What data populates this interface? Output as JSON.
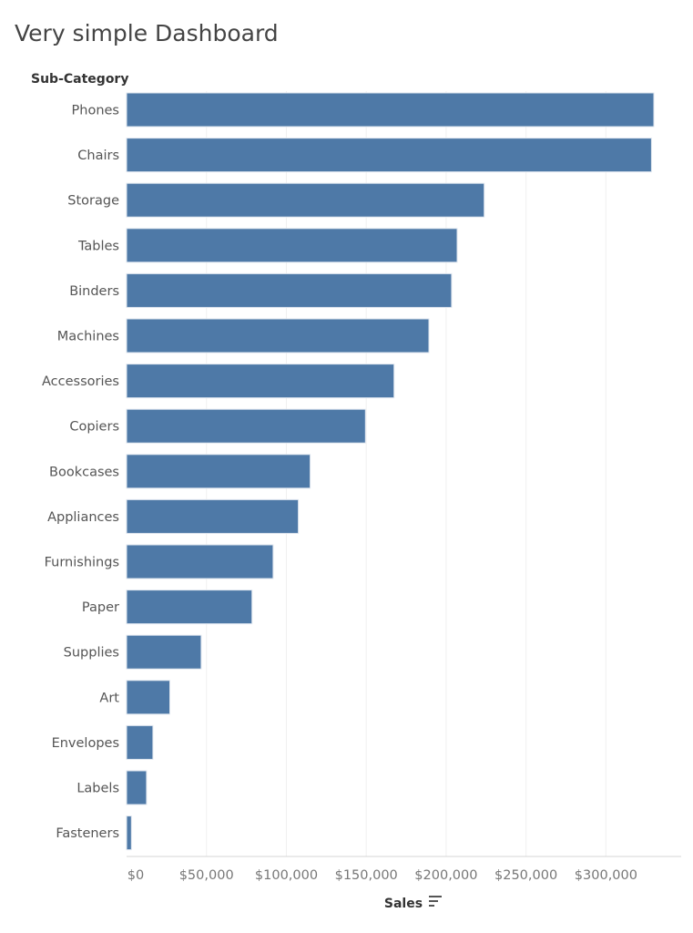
{
  "dashboard": {
    "title": "Very simple Dashboard"
  },
  "chart_data": {
    "type": "bar",
    "orientation": "horizontal",
    "row_header": "Sub-Category",
    "xlabel": "Sales",
    "categories": [
      "Phones",
      "Chairs",
      "Storage",
      "Tables",
      "Binders",
      "Machines",
      "Accessories",
      "Copiers",
      "Bookcases",
      "Appliances",
      "Furnishings",
      "Paper",
      "Supplies",
      "Art",
      "Envelopes",
      "Labels",
      "Fasteners"
    ],
    "values": [
      330000,
      328500,
      223800,
      206900,
      203400,
      189200,
      167400,
      149500,
      114900,
      107500,
      91700,
      78500,
      46700,
      27100,
      16500,
      12500,
      3000
    ],
    "xlim": [
      0,
      345000
    ],
    "xticks": [
      0,
      50000,
      100000,
      150000,
      200000,
      250000,
      300000
    ],
    "xtick_labels": [
      "$0",
      "$50,000",
      "$100,000",
      "$150,000",
      "$200,000",
      "$250,000",
      "$300,000"
    ],
    "bar_color": "#4e79a7",
    "sorted": "descending",
    "grid": "vertical"
  },
  "icons": {
    "sort": "sort-descending-icon"
  }
}
